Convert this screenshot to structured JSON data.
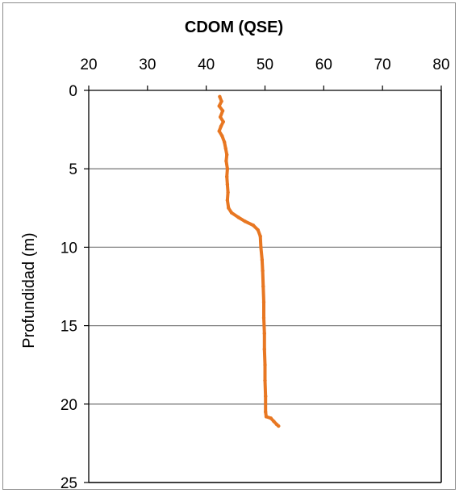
{
  "chart_data": {
    "type": "line",
    "title": "CDOM (QSE)",
    "xlabel": "",
    "ylabel": "Profundidad (m)",
    "xlim": [
      20,
      80
    ],
    "ylim": [
      0,
      25
    ],
    "x_axis_position": "top",
    "y_axis_inverted": true,
    "x_ticks": [
      "20",
      "30",
      "40",
      "50",
      "60",
      "70",
      "80"
    ],
    "y_ticks": [
      "0",
      "5",
      "10",
      "15",
      "20",
      "25"
    ],
    "grid": "horizontal",
    "legend": "none",
    "series": [
      {
        "color": "#e87722",
        "points": [
          [
            42.3,
            0.4
          ],
          [
            42.6,
            0.7
          ],
          [
            42.2,
            1.0
          ],
          [
            42.8,
            1.3
          ],
          [
            42.4,
            1.7
          ],
          [
            42.9,
            2.0
          ],
          [
            42.5,
            2.3
          ],
          [
            42.2,
            2.6
          ],
          [
            42.7,
            2.9
          ],
          [
            43.1,
            3.3
          ],
          [
            43.3,
            3.7
          ],
          [
            43.5,
            4.1
          ],
          [
            43.4,
            4.5
          ],
          [
            43.6,
            5.0
          ],
          [
            43.5,
            5.5
          ],
          [
            43.6,
            6.0
          ],
          [
            43.7,
            6.5
          ],
          [
            43.6,
            7.0
          ],
          [
            43.8,
            7.5
          ],
          [
            44.3,
            7.8
          ],
          [
            45.5,
            8.1
          ],
          [
            46.6,
            8.35
          ],
          [
            48.0,
            8.6
          ],
          [
            48.8,
            8.9
          ],
          [
            49.2,
            9.3
          ],
          [
            49.3,
            10.0
          ],
          [
            49.5,
            10.8
          ],
          [
            49.6,
            11.5
          ],
          [
            49.7,
            12.5
          ],
          [
            49.8,
            13.5
          ],
          [
            49.8,
            14.5
          ],
          [
            49.9,
            15.5
          ],
          [
            49.9,
            16.5
          ],
          [
            50.0,
            17.5
          ],
          [
            50.0,
            18.5
          ],
          [
            50.1,
            19.5
          ],
          [
            50.1,
            20.5
          ],
          [
            50.2,
            20.8
          ],
          [
            51.0,
            20.9
          ],
          [
            51.5,
            21.1
          ],
          [
            52.0,
            21.3
          ],
          [
            52.3,
            21.4
          ]
        ]
      }
    ]
  },
  "colors": {
    "line": "#e87722",
    "grid": "#808080",
    "axis": "#000000"
  }
}
